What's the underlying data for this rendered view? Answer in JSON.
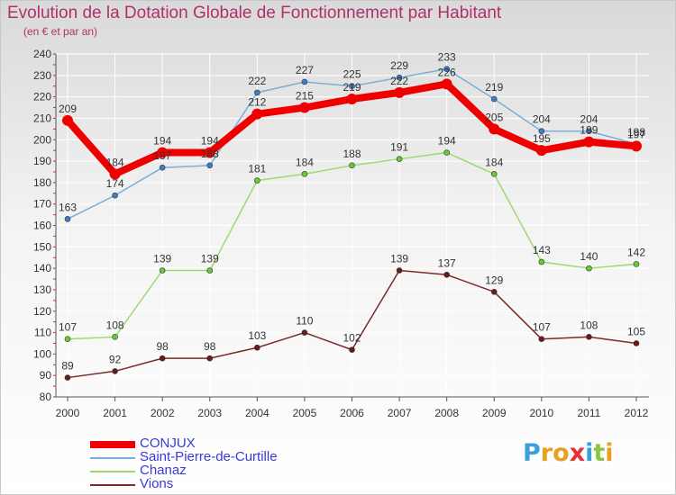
{
  "header": {
    "title": "Evolution de la Dotation Globale de Fonctionnement par Habitant",
    "subtitle": "(en € et par an)"
  },
  "colors": {
    "title": "#b0306a",
    "legend_text": "#3a3ad8",
    "axis": "#555555",
    "grid": "#ffffff"
  },
  "logo": {
    "text": "Proxiti",
    "letters": [
      {
        "ch": "P",
        "color": "#3aa0d8"
      },
      {
        "ch": "r",
        "color": "#e8a020"
      },
      {
        "ch": "o",
        "color": "#e8a020"
      },
      {
        "ch": "x",
        "color": "#e83030"
      },
      {
        "ch": "i",
        "color": "#3aa0d8"
      },
      {
        "ch": "t",
        "color": "#8cc63f"
      },
      {
        "ch": "i",
        "color": "#e8a020"
      }
    ]
  },
  "chart_data": {
    "type": "line",
    "title": "Evolution de la Dotation Globale de Fonctionnement par Habitant",
    "subtitle": "(en € et par an)",
    "x": [
      "2000",
      "2001",
      "2002",
      "2003",
      "2004",
      "2005",
      "2006",
      "2007",
      "2008",
      "2009",
      "2010",
      "2011",
      "2012"
    ],
    "ylim": [
      80,
      240
    ],
    "yticks": [
      80,
      90,
      100,
      110,
      120,
      130,
      140,
      150,
      160,
      170,
      180,
      190,
      200,
      210,
      220,
      230,
      240
    ],
    "grid": true,
    "legend_position": "bottom-left",
    "series": [
      {
        "name": "CONJUX",
        "color": "#ee0000",
        "marker": "#ee0000",
        "width": "thick",
        "values": [
          209,
          184,
          194,
          194,
          212,
          215,
          219,
          222,
          226,
          205,
          195,
          199,
          197
        ]
      },
      {
        "name": "Saint-Pierre-de-Curtille",
        "color": "#7aaed6",
        "marker": "#3a7fc8",
        "width": "thin",
        "values": [
          163,
          174,
          187,
          188,
          222,
          227,
          225,
          229,
          233,
          219,
          204,
          204,
          198
        ]
      },
      {
        "name": "Chanaz",
        "color": "#a0d870",
        "marker": "#66cc33",
        "width": "thin",
        "values": [
          107,
          108,
          139,
          139,
          181,
          184,
          188,
          191,
          194,
          184,
          143,
          140,
          142
        ]
      },
      {
        "name": "Vions",
        "color": "#7a2a2a",
        "marker": "#6a1a1a",
        "width": "thin",
        "values": [
          89,
          92,
          98,
          98,
          103,
          110,
          102,
          139,
          137,
          129,
          107,
          108,
          105
        ]
      }
    ]
  }
}
